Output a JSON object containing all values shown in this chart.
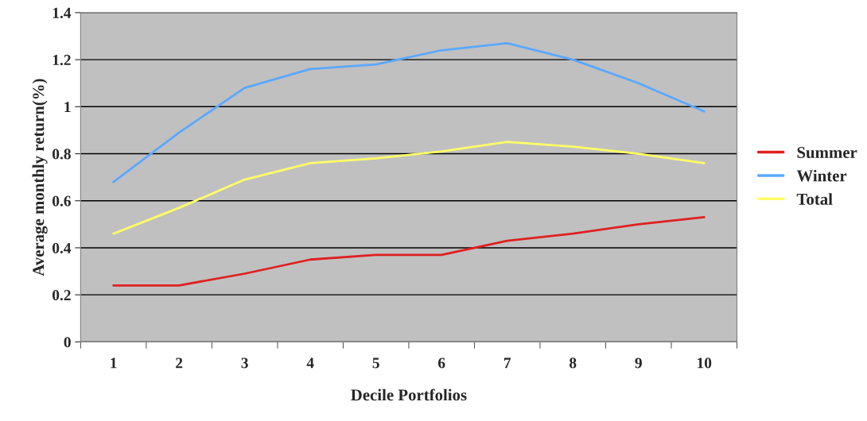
{
  "chart_data": {
    "type": "line",
    "xlabel": "Decile Portfolios",
    "ylabel": "Average monthly return(%)",
    "categories": [
      "1",
      "2",
      "3",
      "4",
      "5",
      "6",
      "7",
      "8",
      "9",
      "10"
    ],
    "series": [
      {
        "name": "Summer",
        "color": "#e02020",
        "values": [
          0.24,
          0.24,
          0.29,
          0.35,
          0.37,
          0.37,
          0.43,
          0.46,
          0.5,
          0.53
        ]
      },
      {
        "name": "Winter",
        "color": "#5ba8ff",
        "values": [
          0.68,
          0.89,
          1.08,
          1.16,
          1.18,
          1.24,
          1.27,
          1.2,
          1.1,
          0.98
        ]
      },
      {
        "name": "Total",
        "color": "#ffff66",
        "values": [
          0.46,
          0.57,
          0.69,
          0.76,
          0.78,
          0.81,
          0.85,
          0.83,
          0.8,
          0.76
        ]
      }
    ],
    "ylim": [
      0,
      1.4
    ],
    "yticks": [
      0,
      0.2,
      0.4,
      0.6,
      0.8,
      1,
      1.2,
      1.4
    ],
    "grid": "y",
    "legend": "right",
    "marker": "none",
    "line_style": "solid"
  }
}
